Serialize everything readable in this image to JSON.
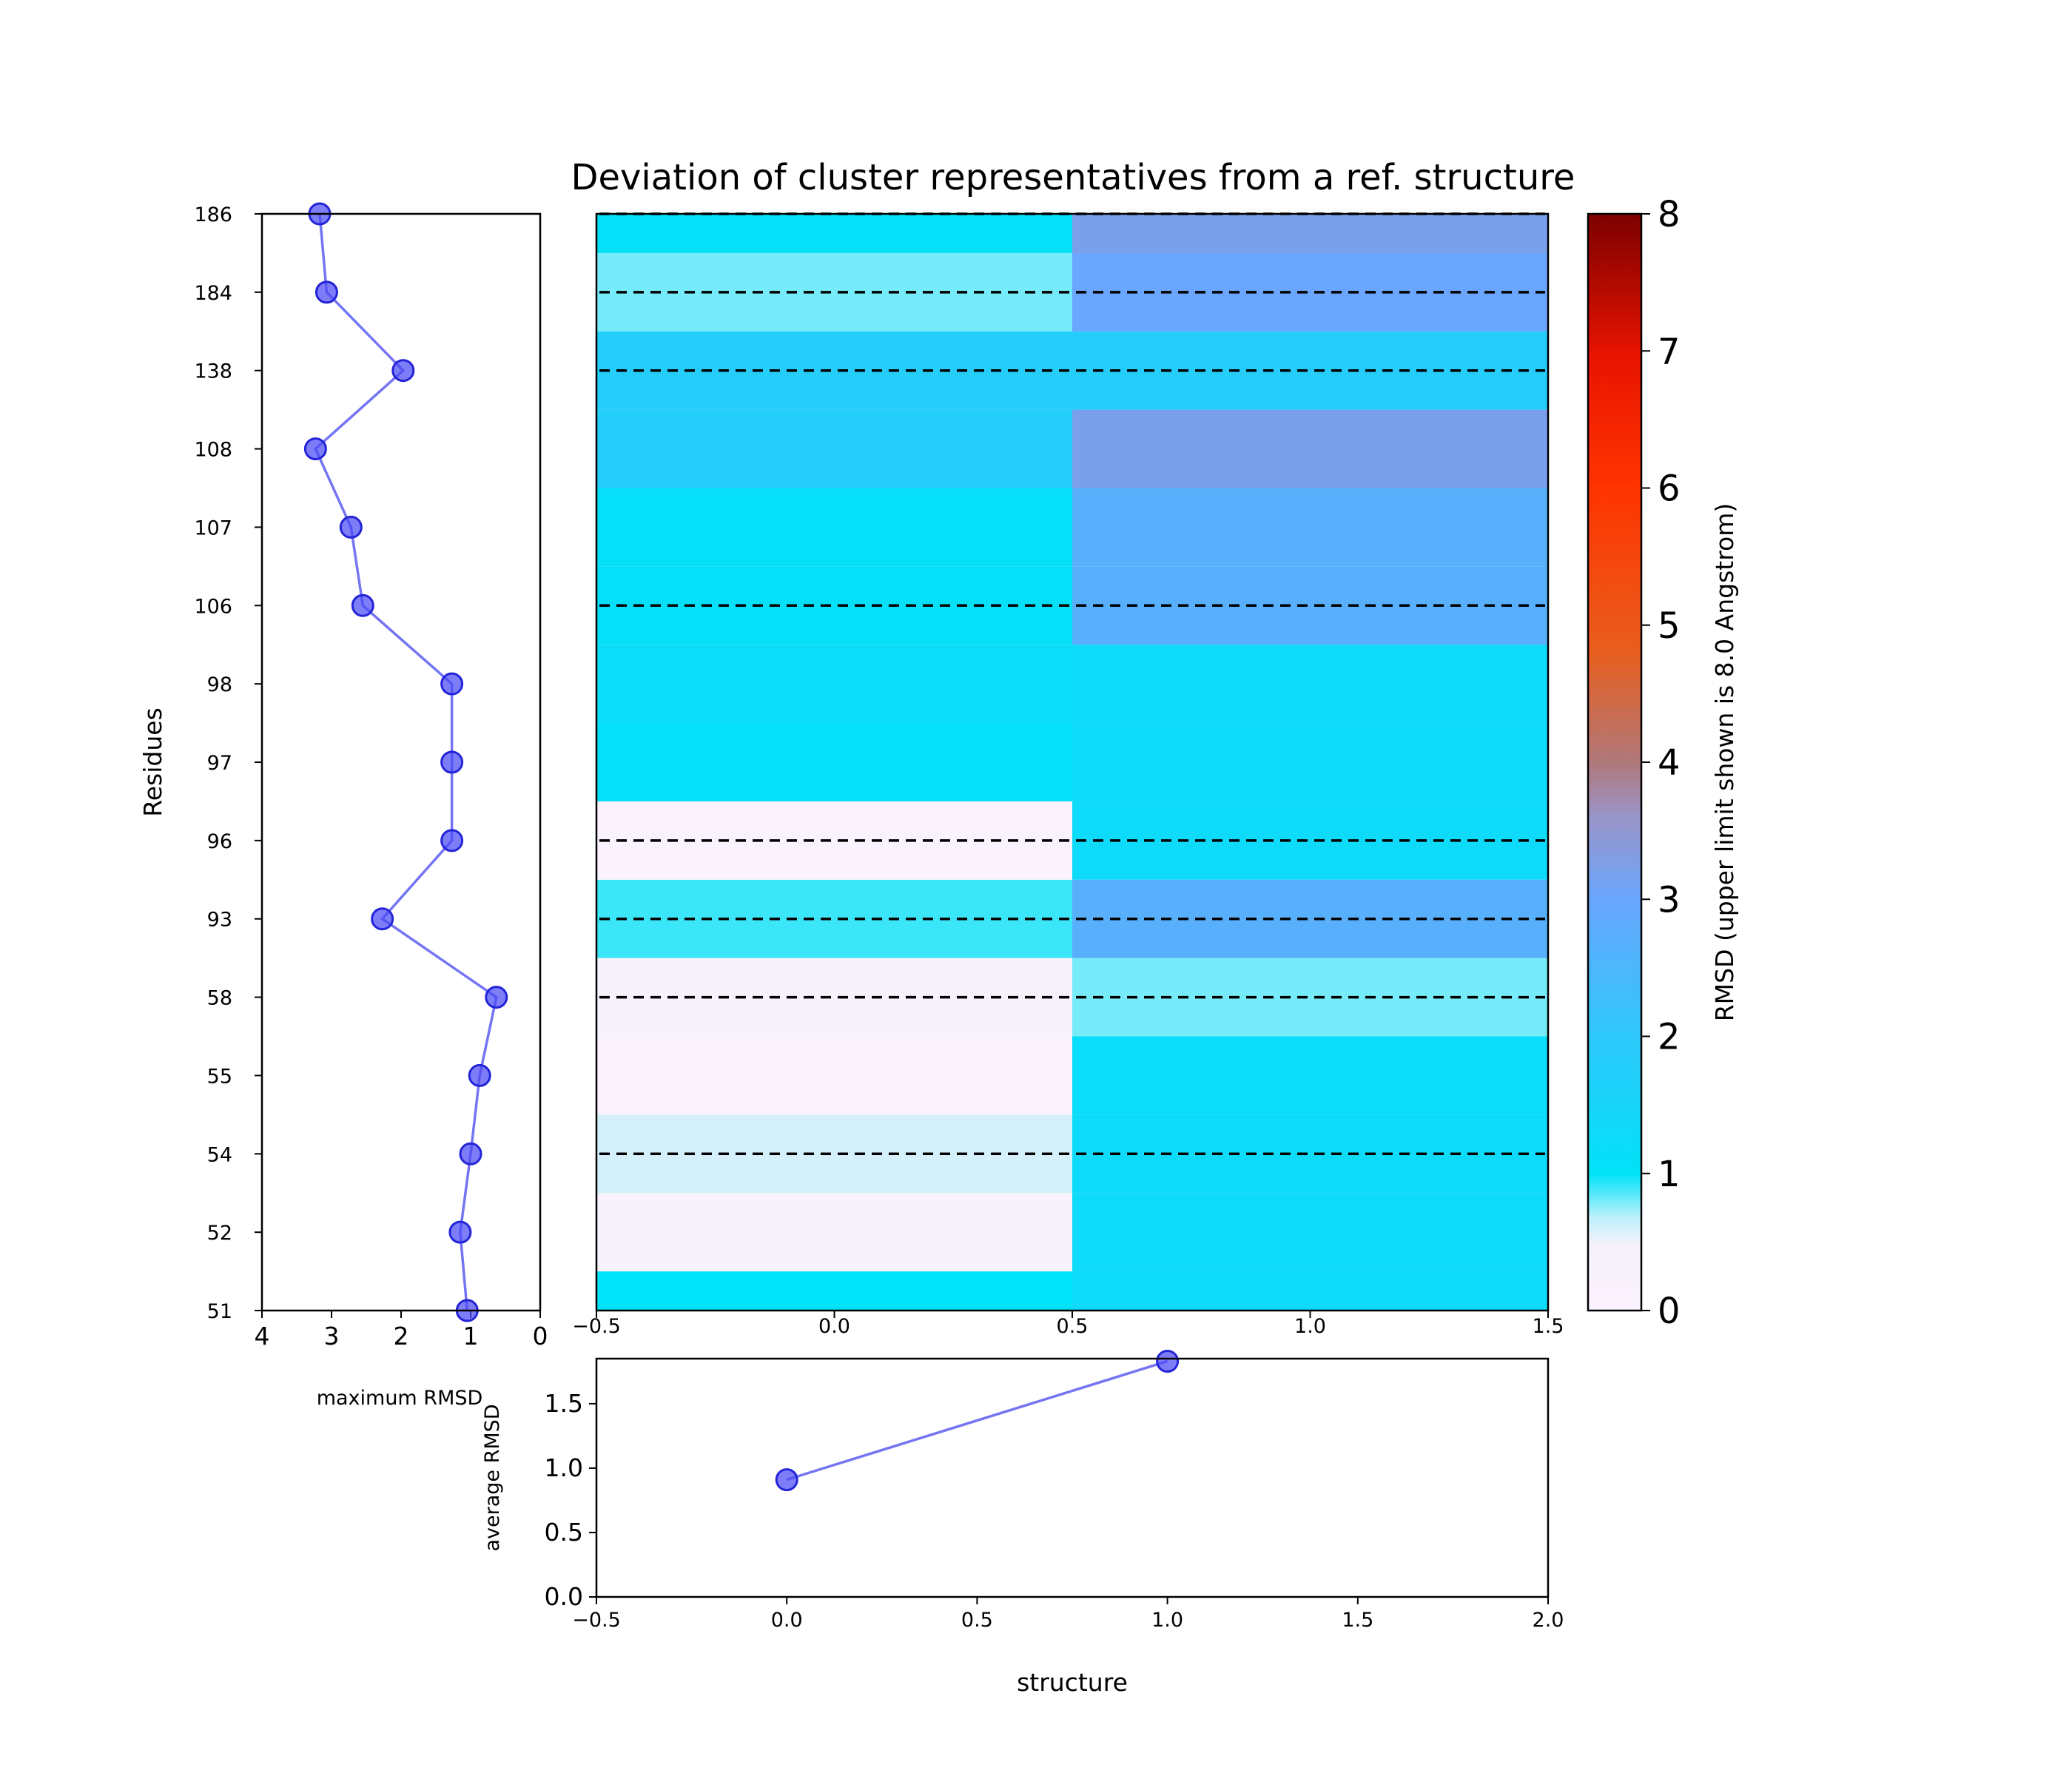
{
  "chart_data": {
    "type": "heatmap",
    "title": "Deviation of cluster representatives from a ref. structure",
    "residues": [
      "51",
      "52",
      "54",
      "55",
      "58",
      "93",
      "96",
      "97",
      "98",
      "106",
      "107",
      "108",
      "138",
      "184",
      "186"
    ],
    "residue_axis_label": "Residues",
    "heat_x_ticks": [
      "−0.5",
      "0.0",
      "0.5",
      "1.0",
      "1.5"
    ],
    "heat_x_lim": [
      -0.5,
      1.5
    ],
    "dashed_rows": [
      "54",
      "58",
      "93",
      "96",
      "106",
      "138",
      "184",
      "186"
    ],
    "heatmap": {
      "columns": [
        0,
        1
      ],
      "values": [
        [
          1.0,
          1.3
        ],
        [
          0.3,
          1.3
        ],
        [
          0.6,
          1.3
        ],
        [
          0.1,
          1.2
        ],
        [
          0.3,
          0.8
        ],
        [
          0.9,
          2.7
        ],
        [
          0.1,
          1.3
        ],
        [
          1.1,
          1.3
        ],
        [
          1.2,
          1.3
        ],
        [
          1.1,
          2.7
        ],
        [
          1.1,
          2.7
        ],
        [
          1.8,
          3.2
        ],
        [
          1.8,
          1.8
        ],
        [
          0.8,
          3.0
        ],
        [
          1.1,
          3.2
        ]
      ]
    },
    "max_rmsd": {
      "xlabel": "maximum RMSD",
      "x_ticks": [
        "4",
        "3",
        "2",
        "1",
        "0"
      ],
      "xlim": [
        4,
        0
      ],
      "values": [
        1.05,
        1.15,
        1.0,
        0.87,
        0.63,
        2.27,
        1.27,
        1.27,
        1.27,
        2.55,
        2.72,
        3.23,
        1.97,
        3.07,
        3.17
      ]
    },
    "average_rmsd": {
      "xlabel": "structure",
      "ylabel": "average RMSD",
      "x": [
        0,
        1
      ],
      "y": [
        0.91,
        1.83
      ],
      "xlim": [
        -0.5,
        2.0
      ],
      "ylim": [
        0.0,
        1.85
      ],
      "x_ticks": [
        "−0.5",
        "0.0",
        "0.5",
        "1.0",
        "1.5",
        "2.0"
      ],
      "y_ticks": [
        "0.0",
        "0.5",
        "1.0",
        "1.5"
      ]
    },
    "colorbar": {
      "label": "RMSD (upper limit shown is 8.0 Angstrom)",
      "range": [
        0,
        8
      ],
      "ticks": [
        "0",
        "1",
        "2",
        "3",
        "4",
        "5",
        "6",
        "7",
        "8"
      ]
    }
  }
}
